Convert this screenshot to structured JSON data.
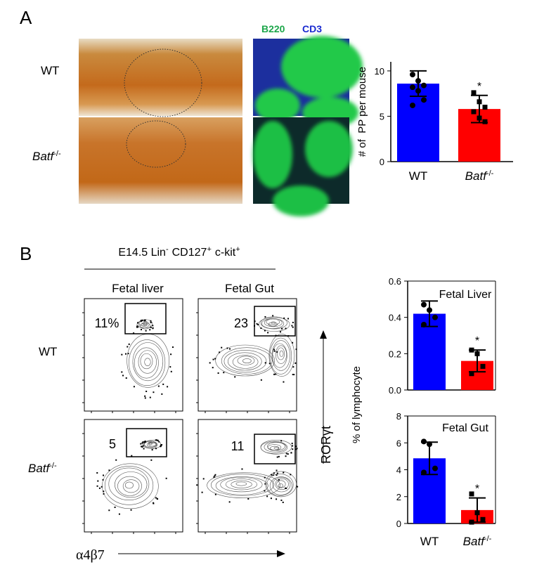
{
  "panel_a": {
    "label": "A",
    "row_labels": [
      {
        "text": "WT"
      },
      {
        "text": "Batf",
        "sup": "-/-"
      }
    ],
    "stain_labels": [
      "B220",
      "CD3"
    ]
  },
  "panel_b": {
    "label": "B",
    "title": [
      "E14.5 Lin",
      "-",
      "CD127",
      "+",
      "c-kit",
      "+"
    ],
    "column_labels": [
      "Fetal liver",
      "Fetal Gut"
    ],
    "row_labels": [
      {
        "text": "WT"
      },
      {
        "text": "Batf",
        "sup": "-/-"
      }
    ],
    "gates": [
      [
        "11%",
        "23"
      ],
      [
        "5",
        "11"
      ]
    ],
    "y_axis_label": "RORγt",
    "x_axis_label": "α4β7",
    "chart_y_label": "% of lymphocyte"
  },
  "chart_data": [
    {
      "type": "bar",
      "y_label": "# of  PP per mouse",
      "categories": [
        "WT",
        "Batf"
      ],
      "category_sup": {
        "1": "-/-"
      },
      "values": [
        8.6,
        5.8
      ],
      "errors": [
        1.4,
        1.5
      ],
      "points": [
        [
          9.6,
          8.9,
          8.4,
          8.2,
          7.8,
          6.8,
          6.2
        ],
        [
          7.6,
          6.6,
          6.0,
          5.5,
          4.8,
          4.4
        ]
      ],
      "colors": [
        "#0000ff",
        "#ff0000"
      ],
      "annotation": "*",
      "ylim": [
        0,
        11
      ],
      "yticks": [
        0,
        5,
        10
      ]
    },
    {
      "type": "bar",
      "title": "Fetal Liver",
      "values": [
        0.42,
        0.16
      ],
      "errors": [
        0.07,
        0.06
      ],
      "points": [
        [
          0.47,
          0.44,
          0.4,
          0.36
        ],
        [
          0.22,
          0.2,
          0.13,
          0.09
        ]
      ],
      "colors": [
        "#0000ff",
        "#ff0000"
      ],
      "annotation": "*",
      "ylim": [
        0,
        0.6
      ],
      "yticks": [
        {
          "value": 0,
          "label": "0.0"
        },
        0.2,
        0.4,
        0.6
      ]
    },
    {
      "type": "bar",
      "title": "Fetal Gut",
      "categories": [
        "WT",
        "Batf"
      ],
      "category_sup": {
        "1": "-/-"
      },
      "values": [
        4.85,
        1.0
      ],
      "errors": [
        1.2,
        0.9
      ],
      "points": [
        [
          6.1,
          5.9,
          4.1,
          3.8
        ],
        [
          2.2,
          0.8,
          0.3,
          0.1
        ]
      ],
      "colors": [
        "#0000ff",
        "#ff0000"
      ],
      "annotation": "*",
      "ylim": [
        0,
        8
      ],
      "yticks": [
        0,
        2,
        4,
        6,
        8
      ]
    }
  ]
}
